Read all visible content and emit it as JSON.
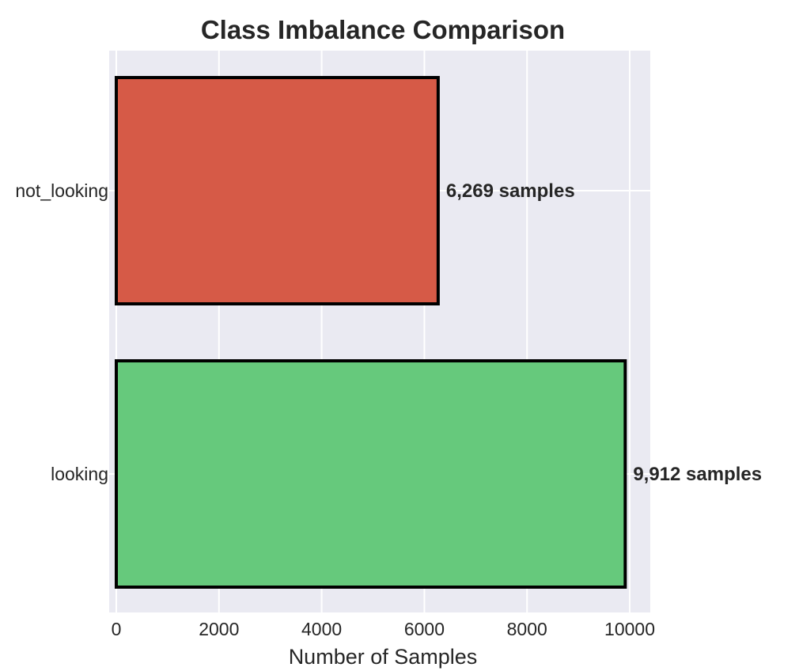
{
  "chart_data": {
    "type": "bar",
    "orientation": "horizontal",
    "title": "Class Imbalance Comparison",
    "xlabel": "Number of Samples",
    "ylabel": "",
    "categories": [
      "not_looking",
      "looking"
    ],
    "values": [
      6269,
      9912
    ],
    "data_labels": [
      "6,269 samples",
      "9,912 samples"
    ],
    "colors": [
      "#d65a47",
      "#66c97c"
    ],
    "edge_color": "#000000",
    "xlim": [
      0,
      10400
    ],
    "x_ticks": [
      0,
      2000,
      4000,
      6000,
      8000,
      10000
    ],
    "x_tick_labels": [
      "0",
      "2000",
      "4000",
      "6000",
      "8000",
      "10000"
    ],
    "grid": true,
    "background_color": "#eaeaf2",
    "grid_color": "#ffffff",
    "legend": "none"
  }
}
